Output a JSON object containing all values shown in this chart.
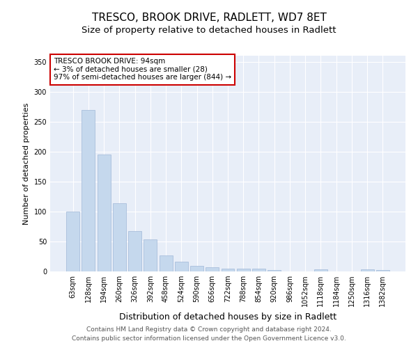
{
  "title": "TRESCO, BROOK DRIVE, RADLETT, WD7 8ET",
  "subtitle": "Size of property relative to detached houses in Radlett",
  "xlabel": "Distribution of detached houses by size in Radlett",
  "ylabel": "Number of detached properties",
  "categories": [
    "63sqm",
    "128sqm",
    "194sqm",
    "260sqm",
    "326sqm",
    "392sqm",
    "458sqm",
    "524sqm",
    "590sqm",
    "656sqm",
    "722sqm",
    "788sqm",
    "854sqm",
    "920sqm",
    "986sqm",
    "1052sqm",
    "1118sqm",
    "1184sqm",
    "1250sqm",
    "1316sqm",
    "1382sqm"
  ],
  "values": [
    100,
    270,
    195,
    114,
    67,
    54,
    27,
    16,
    9,
    7,
    5,
    5,
    5,
    2,
    0,
    0,
    4,
    0,
    0,
    3,
    2
  ],
  "bar_color": "#c5d8ed",
  "bar_edge_color": "#a0b8d8",
  "bg_color": "#e8eef8",
  "annotation_box_color": "#ffffff",
  "annotation_box_edge": "#cc0000",
  "annotation_text": "TRESCO BROOK DRIVE: 94sqm\n← 3% of detached houses are smaller (28)\n97% of semi-detached houses are larger (844) →",
  "footer1": "Contains HM Land Registry data © Crown copyright and database right 2024.",
  "footer2": "Contains public sector information licensed under the Open Government Licence v3.0.",
  "ylim": [
    0,
    360
  ],
  "yticks": [
    0,
    50,
    100,
    150,
    200,
    250,
    300,
    350
  ],
  "title_fontsize": 11,
  "subtitle_fontsize": 9.5,
  "xlabel_fontsize": 9,
  "ylabel_fontsize": 8,
  "tick_fontsize": 7,
  "annot_fontsize": 7.5,
  "footer_fontsize": 6.5
}
